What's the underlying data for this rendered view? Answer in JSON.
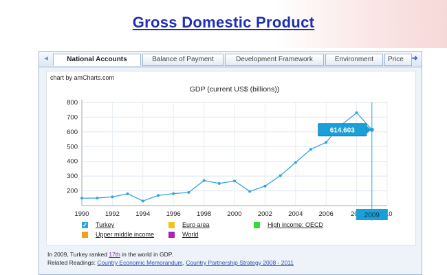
{
  "page": {
    "title": "Gross Domestic Product"
  },
  "tabs": {
    "items": [
      "National Accounts",
      "Balance of Payment",
      "Development Framework",
      "Environment",
      "Price"
    ],
    "active_index": 0
  },
  "chart_credit": "chart by amCharts.com",
  "chart_data": {
    "type": "line",
    "title": "GDP (current US$ (billions))",
    "x": [
      1990,
      1991,
      1992,
      1993,
      1994,
      1995,
      1996,
      1997,
      1998,
      1999,
      2000,
      2001,
      2002,
      2003,
      2004,
      2005,
      2006,
      2007,
      2008,
      2009
    ],
    "series": [
      {
        "name": "Turkey",
        "color": "#33a3dc",
        "values": [
          150,
          151,
          159,
          180,
          131,
          169,
          181,
          189,
          270,
          250,
          267,
          196,
          232,
          303,
          392,
          482,
          529,
          647,
          730,
          614.603
        ]
      }
    ],
    "xlim": [
      1990,
      2010
    ],
    "ylim": [
      100,
      800
    ],
    "x_ticks": [
      "1990",
      "1992",
      "1994",
      "1996",
      "1998",
      "2000",
      "2002",
      "2004",
      "2006",
      "20",
      "10"
    ],
    "y_ticks": [
      "200",
      "300",
      "400",
      "500",
      "600",
      "700",
      "800"
    ],
    "tooltip_value": "614.603",
    "cursor_label": "2009",
    "grid": true,
    "legend": [
      {
        "label": "Turkey",
        "color": "#33a3dc",
        "checked": true
      },
      {
        "label": "Euro area",
        "color": "#f2c318",
        "checked": false
      },
      {
        "label": "High income: OECD",
        "color": "#33dd33",
        "checked": false
      },
      {
        "label": "Upper middle income",
        "color": "#f2a01a",
        "checked": false
      },
      {
        "label": "World",
        "color": "#b021b8",
        "checked": false
      }
    ]
  },
  "footer": {
    "rank_prefix": "In 2009, Turkey ranked",
    "rank_value": "17th",
    "rank_suffix": "in the world in GDP.",
    "related_prefix": "Related Readings:",
    "related_link_1": "Country Economic Memorandum",
    "separator": ",",
    "related_link_2": "Country Partnership Strategy 2008 - 2011"
  }
}
